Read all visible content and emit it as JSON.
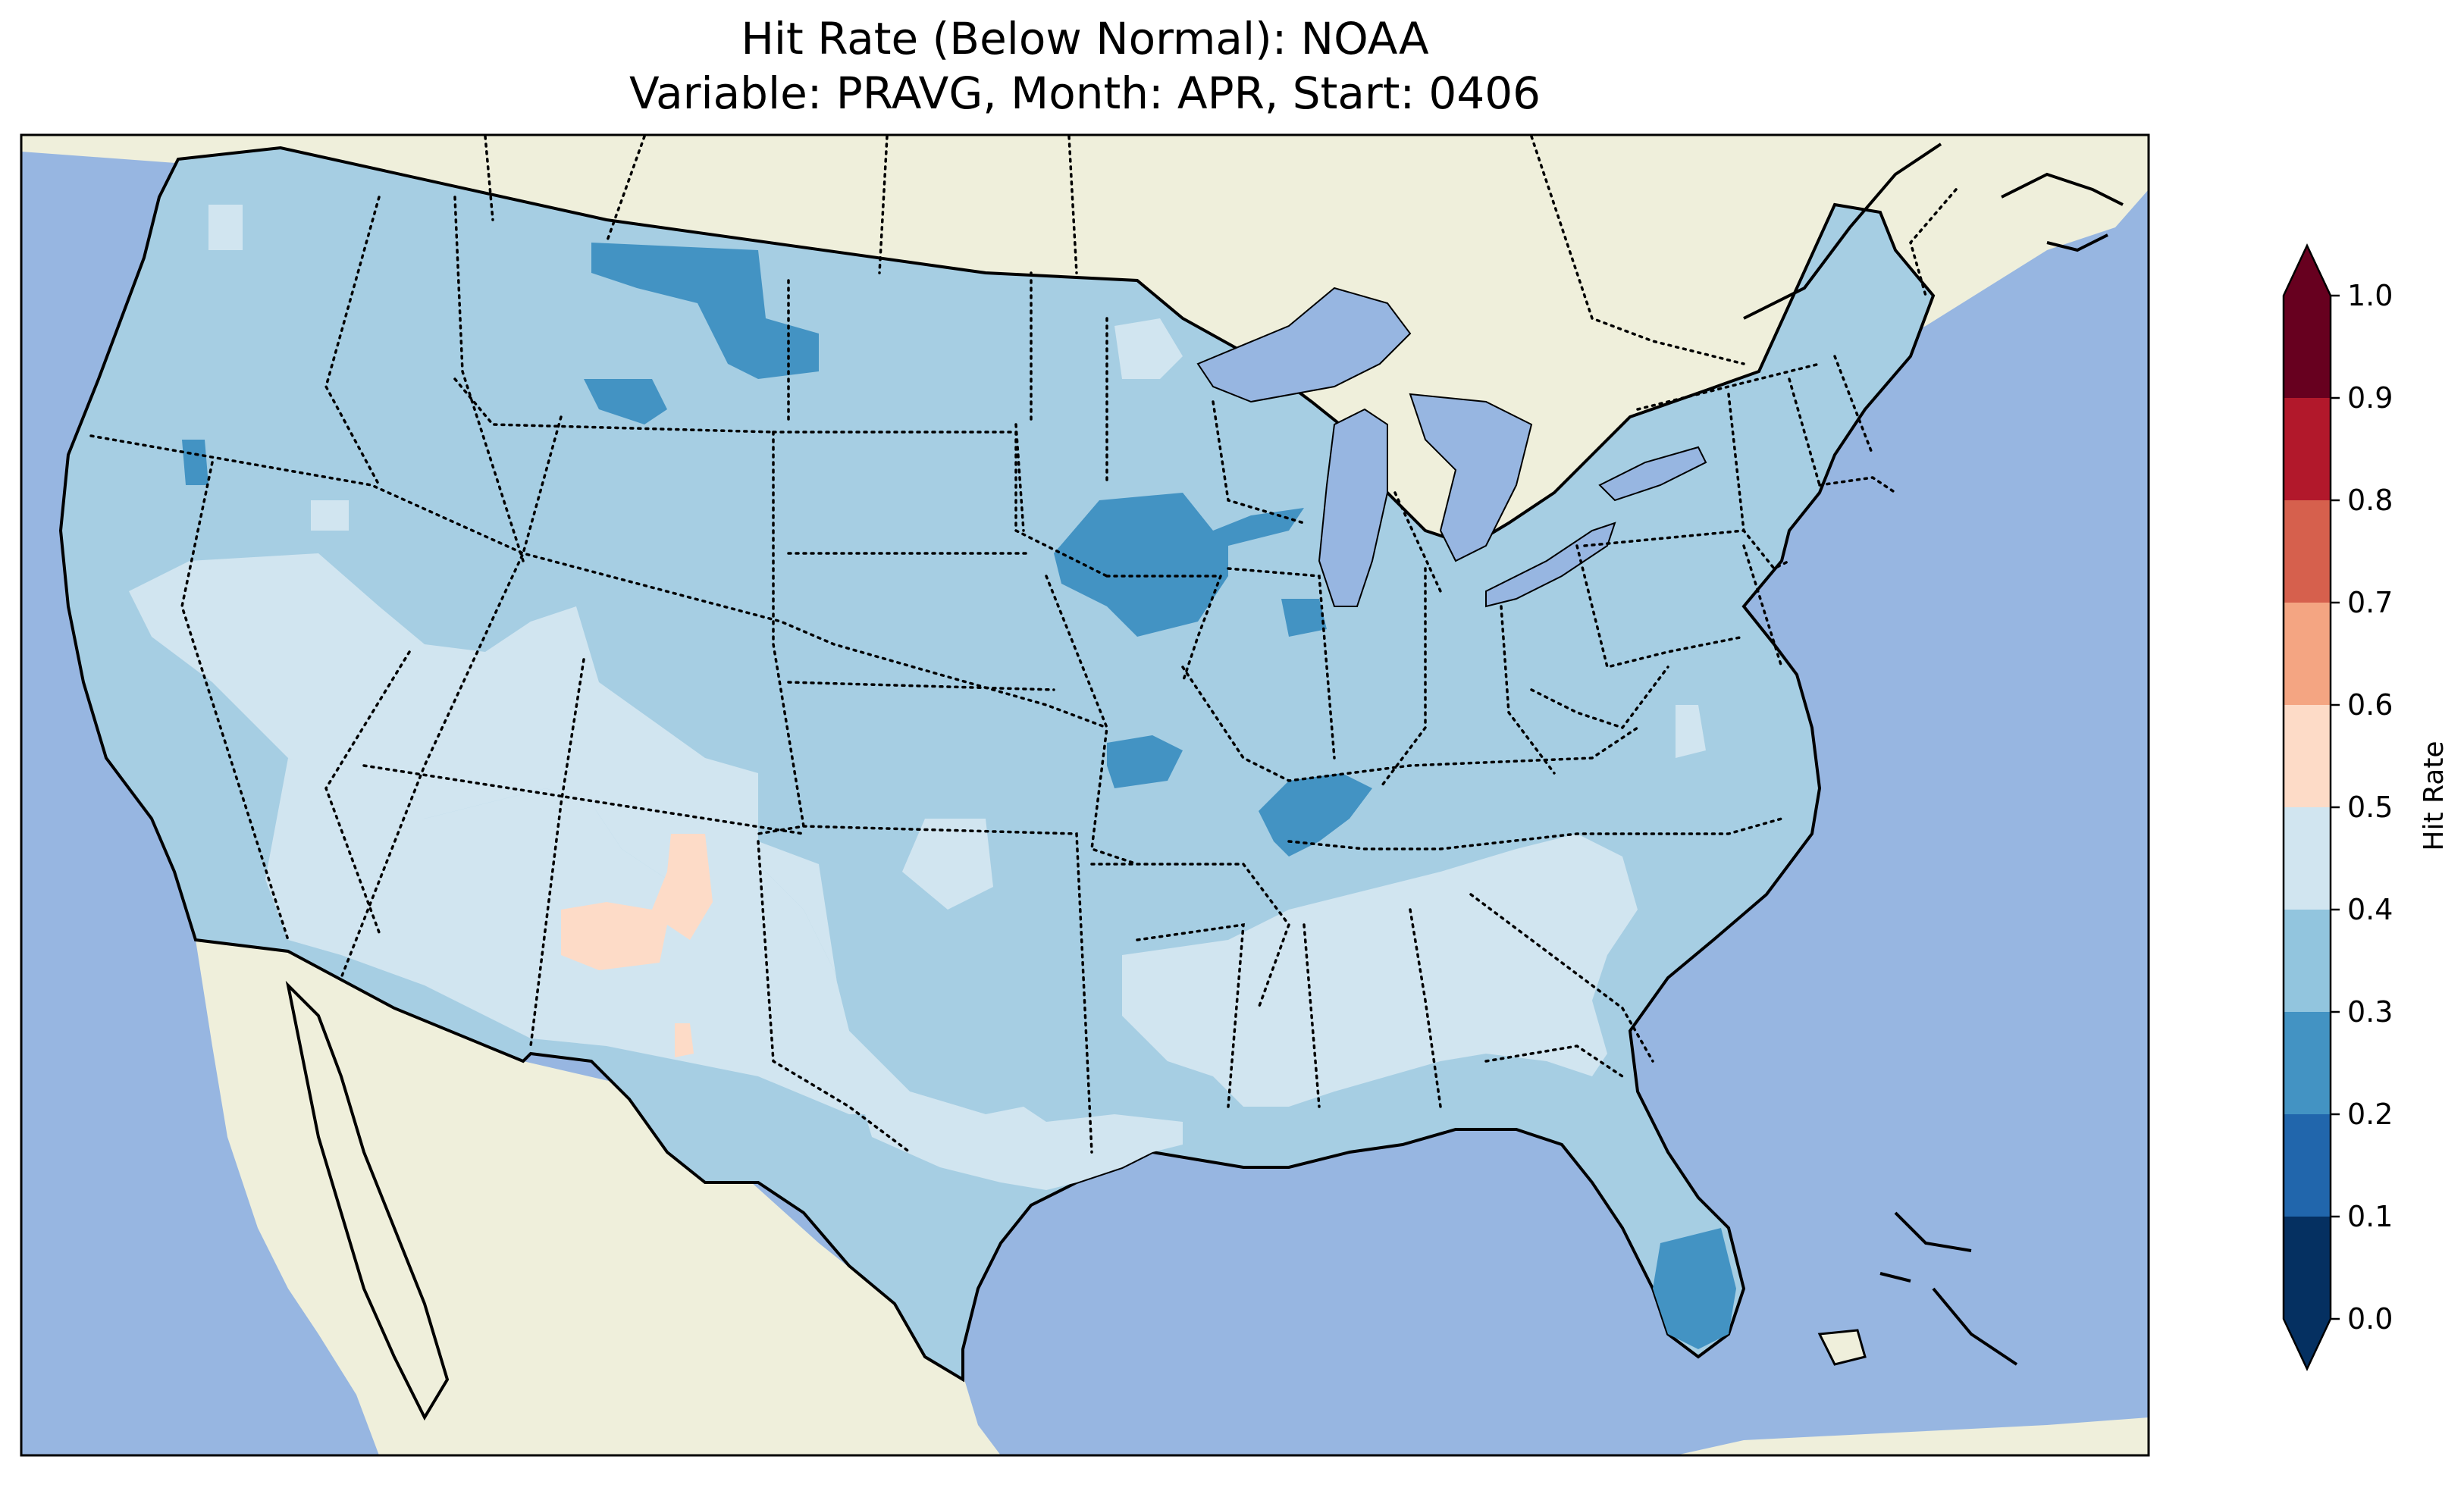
{
  "title_line_1": "Hit Rate (Below Normal): NOAA",
  "title_line_2": "Variable: PRAVG, Month: APR, Start: 0406",
  "colorbar": {
    "label": "Hit Rate",
    "ticks": [
      "0.0",
      "0.1",
      "0.2",
      "0.3",
      "0.4",
      "0.5",
      "0.6",
      "0.7",
      "0.8",
      "0.9",
      "1.0"
    ],
    "bins": [
      {
        "range": [
          0.0,
          0.1
        ],
        "color": "#053061"
      },
      {
        "range": [
          0.1,
          0.2
        ],
        "color": "#2166ac"
      },
      {
        "range": [
          0.2,
          0.3
        ],
        "color": "#4393c3"
      },
      {
        "range": [
          0.3,
          0.4
        ],
        "color": "#92c5de"
      },
      {
        "range": [
          0.4,
          0.5
        ],
        "color": "#d1e5f0"
      },
      {
        "range": [
          0.5,
          0.6
        ],
        "color": "#fddbc7"
      },
      {
        "range": [
          0.6,
          0.7
        ],
        "color": "#f4a582"
      },
      {
        "range": [
          0.7,
          0.8
        ],
        "color": "#d6604d"
      },
      {
        "range": [
          0.8,
          0.9
        ],
        "color": "#b2182b"
      },
      {
        "range": [
          0.9,
          1.0
        ],
        "color": "#67001f"
      }
    ],
    "extend": "both"
  },
  "map_colors": {
    "ocean": "#97b6e1",
    "land": "#efefdb",
    "lakes": "#97b6e1"
  }
}
